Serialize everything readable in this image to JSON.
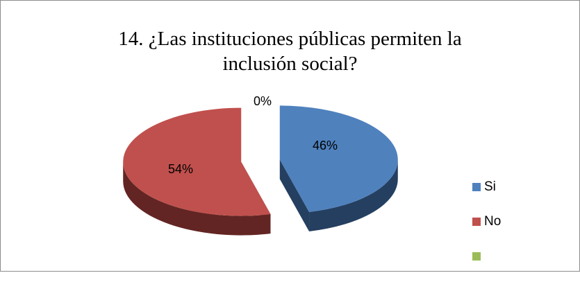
{
  "chart_data": {
    "type": "pie",
    "title_lines": [
      "14. ¿Las instituciones públicas permiten la",
      "inclusión social?"
    ],
    "slices": [
      {
        "label": "Si",
        "value": 46,
        "value_label": "46%",
        "color": "#4F81BD",
        "side_color": "#243F60"
      },
      {
        "label": "No",
        "value": 54,
        "value_label": "54%",
        "color": "#C0504D",
        "side_color": "#632523"
      },
      {
        "label": "",
        "value": 0,
        "value_label": "0%",
        "color": "#9BBB59",
        "side_color": "#4F6228"
      }
    ],
    "legend_position": "right",
    "exploded": true,
    "style": "3d"
  }
}
